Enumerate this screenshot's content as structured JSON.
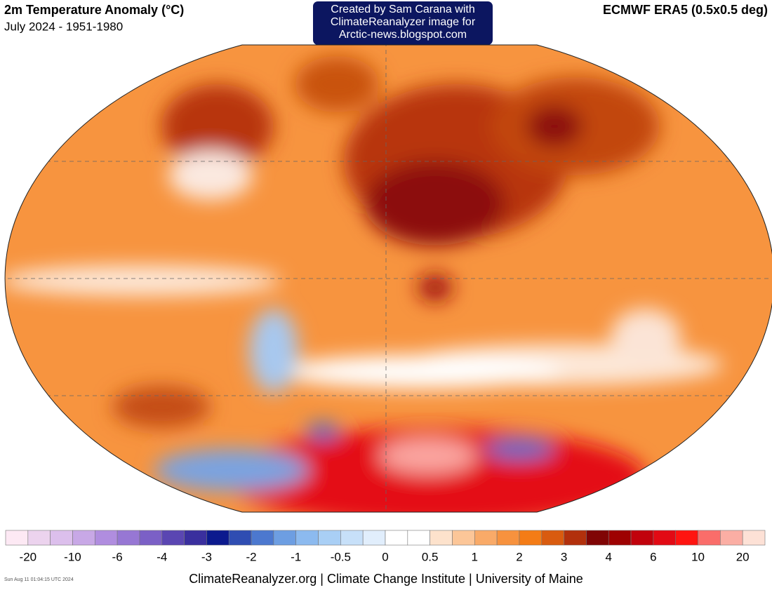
{
  "header": {
    "title": "2m Temperature Anomaly (°C)",
    "subtitle": "July 2024 - 1951-1980",
    "credit": [
      "Created by Sam Carana with",
      "ClimateReanalyzer image for",
      "Arctic-news.blogspot.com"
    ],
    "dataset": "ECMWF ERA5 (0.5x0.5 deg)"
  },
  "colorbar": {
    "colors": [
      "#fde9f4",
      "#ecd3ee",
      "#dcbfec",
      "#c8a8e6",
      "#b08ddf",
      "#9777d4",
      "#7b60c6",
      "#5a46b2",
      "#3a2f9e",
      "#0c1a8e",
      "#2f4db2",
      "#4c78cf",
      "#6d9ee2",
      "#8cbaef",
      "#a9cff5",
      "#c7e0f9",
      "#e1eefc",
      "#ffffff",
      "#ffffff",
      "#fde2cc",
      "#fcc698",
      "#f9aa68",
      "#f7923e",
      "#f47c16",
      "#d95b0f",
      "#b2300c",
      "#800505",
      "#9e0202",
      "#c1020c",
      "#e20a14",
      "#ff1410",
      "#fa6d6a",
      "#fbaea4",
      "#fde1d6"
    ],
    "labels": [
      "-20",
      "-10",
      "-6",
      "-4",
      "-3",
      "-2",
      "-1",
      "-0.5",
      "0",
      "0.5",
      "1",
      "2",
      "3",
      "4",
      "6",
      "10",
      "20"
    ]
  },
  "footer": {
    "timestamp": "Sun Aug 11 01:04:15 UTC 2024",
    "source": "ClimateReanalyzer.org | Climate Change Institute | University of Maine"
  }
}
